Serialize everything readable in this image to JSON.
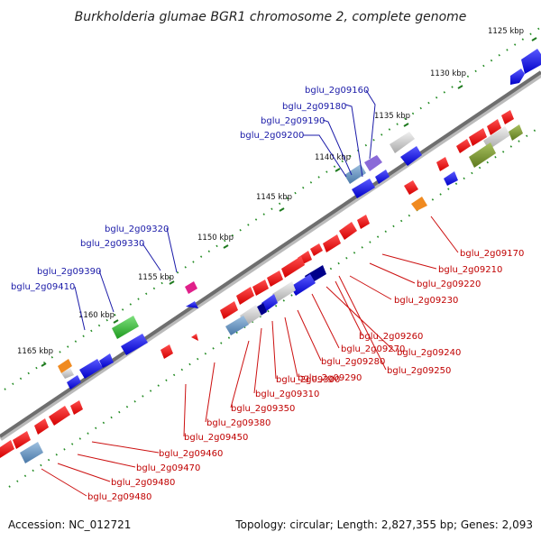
{
  "title": "Burkholderia glumae BGR1 chromosome 2, complete genome",
  "footer": {
    "accession": "Accession: NC_012721",
    "stats": "Topology: circular; Length: 2,827,355 bp; Genes: 2,093"
  },
  "scale_labels": [
    "1125 kbp",
    "1130 kbp",
    "1135 kbp",
    "1140 kbp",
    "1145 kbp",
    "1150 kbp",
    "1155 kbp",
    "1160 kbp",
    "1165 kbp"
  ],
  "top_strand_labels": [
    "bglu_2g09160",
    "bglu_2g09180",
    "bglu_2g09190",
    "bglu_2g09200",
    "bglu_2g09320",
    "bglu_2g09330",
    "bglu_2g09390",
    "bglu_2g09410"
  ],
  "bottom_strand_labels": [
    "bglu_2g09170",
    "bglu_2g09210",
    "bglu_2g09220",
    "bglu_2g09230",
    "bglu_2g09240",
    "bglu_2g09250",
    "bglu_2g09260",
    "bglu_2g09270",
    "bglu_2g09280",
    "bglu_2g09290",
    "bglu_2g09300",
    "bglu_2g09310",
    "bglu_2g09350",
    "bglu_2g09380",
    "bglu_2g09450",
    "bglu_2g09460",
    "bglu_2g09470",
    "bglu_2g09480"
  ],
  "colors": {
    "forward_gene": "#ff0000",
    "reverse_gene": "#0000ee",
    "backbone": "#666666",
    "tick": "#228b22"
  }
}
